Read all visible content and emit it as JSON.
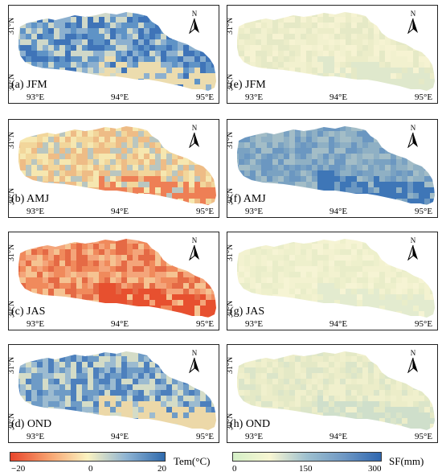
{
  "panels": [
    {
      "label": "(a) JFM",
      "variable": "Tem",
      "season": "JFM",
      "palette": [
        "#3f74b8",
        "#5f93c6",
        "#8cb0cf",
        "#cfd8c9"
      ],
      "south": "#ecdcae"
    },
    {
      "label": "(b) AMJ",
      "variable": "Tem",
      "season": "AMJ",
      "palette": [
        "#f6e7b0",
        "#f2d69b",
        "#eebc86",
        "#b9c6c0"
      ],
      "south": "#ee7f55"
    },
    {
      "label": "(c) JAS",
      "variable": "Tem",
      "season": "JAS",
      "palette": [
        "#f4a57a",
        "#f08a5c",
        "#f5c392",
        "#e56a45"
      ],
      "south": "#e7502f"
    },
    {
      "label": "(d) OND",
      "variable": "Tem",
      "season": "OND",
      "palette": [
        "#4d80bd",
        "#6e9bc6",
        "#9cbbd0",
        "#d4dcc7"
      ],
      "south": "#ecd8a8"
    },
    {
      "label": "(e) JFM",
      "variable": "SF",
      "season": "JFM",
      "palette": [
        "#f2f1cf",
        "#ecedc9",
        "#e5e9c6",
        "#f6f3d2"
      ],
      "south": "#dfe8cc"
    },
    {
      "label": "(f) AMJ",
      "variable": "SF",
      "season": "AMJ",
      "palette": [
        "#8fb0c4",
        "#7aa2c2",
        "#a3bdc7",
        "#6b97c1"
      ],
      "south": "#3e76b7"
    },
    {
      "label": "(g) JAS",
      "variable": "SF",
      "season": "JAS",
      "palette": [
        "#f3f2d0",
        "#eef0cc",
        "#f6f4d4",
        "#e9edc9"
      ],
      "south": "#e3ebcf"
    },
    {
      "label": "(h) OND",
      "variable": "SF",
      "season": "OND",
      "palette": [
        "#ecedc9",
        "#e4e9c6",
        "#f0f0cd",
        "#dbe5c9"
      ],
      "south": "#cfdfcb"
    }
  ],
  "axes": {
    "x_ticks": [
      "93°E",
      "94°E",
      "95°E"
    ],
    "y_ticks": [
      "31°N",
      "30°N"
    ]
  },
  "north_arrow": {
    "label": "N",
    "icon": "north-arrow-icon"
  },
  "legends": {
    "temperature": {
      "title": "Tem(°C)",
      "ticks": [
        "−20",
        "0",
        "20"
      ],
      "colors": [
        "#e8452c",
        "#f7a26f",
        "#fbf3c1",
        "#8fb4d3",
        "#2f6aad"
      ]
    },
    "snowfall": {
      "title": "SF(mm)",
      "ticks": [
        "0",
        "150",
        "300"
      ],
      "colors": [
        "#d4efc7",
        "#f8f6d2",
        "#9ec0cf",
        "#6f98c4",
        "#2f67b0"
      ]
    }
  }
}
